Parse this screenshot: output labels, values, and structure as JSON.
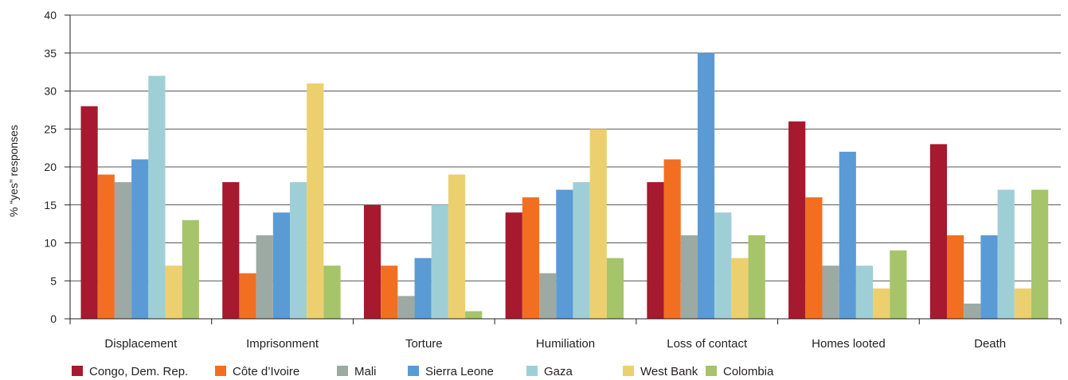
{
  "chart_data": {
    "type": "bar",
    "title": "",
    "xlabel": "",
    "ylabel": "% “yes” responses",
    "ylim": [
      0,
      40
    ],
    "yticks": [
      0,
      5,
      10,
      15,
      20,
      25,
      30,
      35,
      40
    ],
    "grid": true,
    "legend_position": "bottom",
    "categories": [
      "Displacement",
      "Imprisonment",
      "Torture",
      "Humiliation",
      "Loss of contact",
      "Homes looted",
      "Death"
    ],
    "series": [
      {
        "name": "Congo, Dem. Rep.",
        "color": "#a6192e",
        "values": [
          28,
          18,
          15,
          14,
          18,
          26,
          23
        ]
      },
      {
        "name": "Côte d’Ivoire",
        "color": "#f26f21",
        "values": [
          19,
          6,
          7,
          16,
          21,
          16,
          11
        ]
      },
      {
        "name": "Mali",
        "color": "#9caaa3",
        "values": [
          18,
          11,
          3,
          6,
          11,
          7,
          2
        ]
      },
      {
        "name": "Sierra Leone",
        "color": "#5b9bd5",
        "values": [
          21,
          14,
          8,
          17,
          35,
          22,
          11
        ]
      },
      {
        "name": "Gaza",
        "color": "#9fcfd6",
        "values": [
          32,
          18,
          15,
          18,
          14,
          7,
          17
        ]
      },
      {
        "name": "West Bank",
        "color": "#ecd06f",
        "values": [
          7,
          31,
          19,
          25,
          8,
          4,
          4
        ]
      },
      {
        "name": "Colombia",
        "color": "#a6c46a",
        "values": [
          13,
          7,
          1,
          8,
          11,
          9,
          17
        ]
      }
    ]
  }
}
